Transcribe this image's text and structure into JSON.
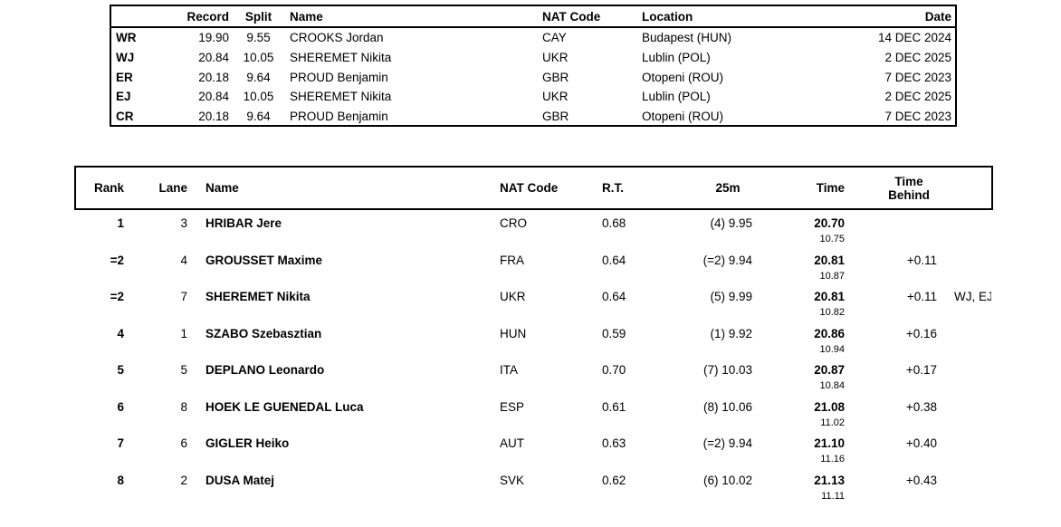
{
  "records_table": {
    "headers": {
      "record": "Record",
      "split": "Split",
      "name": "Name",
      "nat_code": "NAT Code",
      "location": "Location",
      "date": "Date"
    },
    "rows": [
      {
        "type": "WR",
        "record": "19.90",
        "split": "9.55",
        "name": "CROOKS Jordan",
        "nat_code": "CAY",
        "location": "Budapest (HUN)",
        "date": "14 DEC 2024"
      },
      {
        "type": "WJ",
        "record": "20.84",
        "split": "10.05",
        "name": "SHEREMET Nikita",
        "nat_code": "UKR",
        "location": "Lublin (POL)",
        "date": "2 DEC 2025"
      },
      {
        "type": "ER",
        "record": "20.18",
        "split": "9.64",
        "name": "PROUD Benjamin",
        "nat_code": "GBR",
        "location": "Otopeni (ROU)",
        "date": "7 DEC 2023"
      },
      {
        "type": "EJ",
        "record": "20.84",
        "split": "10.05",
        "name": "SHEREMET Nikita",
        "nat_code": "UKR",
        "location": "Lublin (POL)",
        "date": "2 DEC 2025"
      },
      {
        "type": "CR",
        "record": "20.18",
        "split": "9.64",
        "name": "PROUD Benjamin",
        "nat_code": "GBR",
        "location": "Otopeni (ROU)",
        "date": "7 DEC 2023"
      }
    ]
  },
  "results_table": {
    "headers": {
      "rank": "Rank",
      "lane": "Lane",
      "name": "Name",
      "nat_code": "NAT Code",
      "rt": "R.T.",
      "d25m": "25m",
      "time": "Time",
      "time_behind_l1": "Time",
      "time_behind_l2": "Behind"
    },
    "rows": [
      {
        "rank": "1",
        "lane": "3",
        "name": "HRIBAR Jere",
        "nat_code": "CRO",
        "rt": "0.68",
        "d25m": "(4) 9.95",
        "time": "20.70",
        "time_split": "10.75",
        "behind": "",
        "note": ""
      },
      {
        "rank": "=2",
        "lane": "4",
        "name": "GROUSSET Maxime",
        "nat_code": "FRA",
        "rt": "0.64",
        "d25m": "(=2) 9.94",
        "time": "20.81",
        "time_split": "10.87",
        "behind": "+0.11",
        "note": ""
      },
      {
        "rank": "=2",
        "lane": "7",
        "name": "SHEREMET Nikita",
        "nat_code": "UKR",
        "rt": "0.64",
        "d25m": "(5) 9.99",
        "time": "20.81",
        "time_split": "10.82",
        "behind": "+0.11",
        "note": "WJ, EJ"
      },
      {
        "rank": "4",
        "lane": "1",
        "name": "SZABO Szebasztian",
        "nat_code": "HUN",
        "rt": "0.59",
        "d25m": "(1) 9.92",
        "time": "20.86",
        "time_split": "10.94",
        "behind": "+0.16",
        "note": ""
      },
      {
        "rank": "5",
        "lane": "5",
        "name": "DEPLANO Leonardo",
        "nat_code": "ITA",
        "rt": "0.70",
        "d25m": "(7) 10.03",
        "time": "20.87",
        "time_split": "10.84",
        "behind": "+0.17",
        "note": ""
      },
      {
        "rank": "6",
        "lane": "8",
        "name": "HOEK LE GUENEDAL Luca",
        "nat_code": "ESP",
        "rt": "0.61",
        "d25m": "(8) 10.06",
        "time": "21.08",
        "time_split": "11.02",
        "behind": "+0.38",
        "note": ""
      },
      {
        "rank": "7",
        "lane": "6",
        "name": "GIGLER Heiko",
        "nat_code": "AUT",
        "rt": "0.63",
        "d25m": "(=2) 9.94",
        "time": "21.10",
        "time_split": "11.16",
        "behind": "+0.40",
        "note": ""
      },
      {
        "rank": "8",
        "lane": "2",
        "name": "DUSA Matej",
        "nat_code": "SVK",
        "rt": "0.62",
        "d25m": "(6) 10.02",
        "time": "21.13",
        "time_split": "11.11",
        "behind": "+0.43",
        "note": ""
      }
    ]
  }
}
